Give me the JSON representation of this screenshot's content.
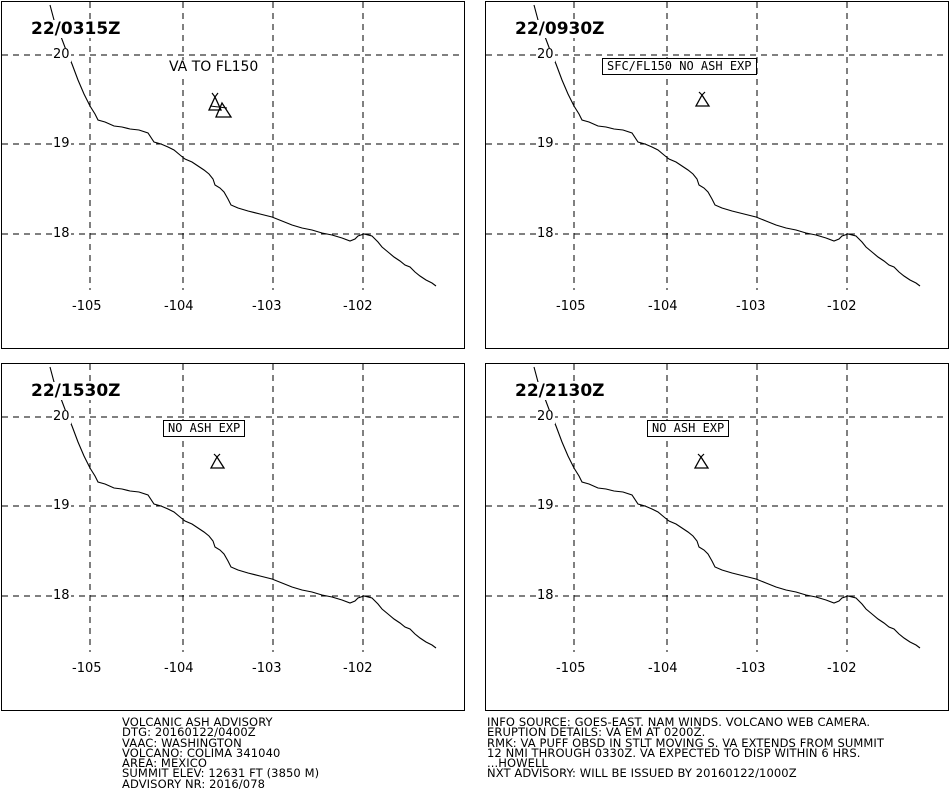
{
  "panels": [
    {
      "time": "22/0315Z",
      "label": "VA TO FL150",
      "label_style": "plain",
      "ash_polygon": true
    },
    {
      "time": "22/0930Z",
      "label": "SFC/FL150 NO ASH EXP",
      "label_style": "boxed",
      "ash_polygon": false
    },
    {
      "time": "22/1530Z",
      "label": "NO ASH EXP",
      "label_style": "boxed",
      "ash_polygon": false
    },
    {
      "time": "22/2130Z",
      "label": "NO ASH EXP",
      "label_style": "boxed",
      "ash_polygon": false
    }
  ],
  "latitude_labels": [
    "20",
    "19",
    "18"
  ],
  "longitude_labels": [
    "-105",
    "-104",
    "-103",
    "-102"
  ],
  "volcano_icon": "volcano-triangle-icon",
  "advisory_left": [
    "VOLCANIC ASH ADVISORY",
    "DTG: 20160122/0400Z",
    "VAAC: WASHINGTON",
    "VOLCANO: COLIMA 341040",
    "AREA: MEXICO",
    "SUMMIT ELEV: 12631 FT (3850 M)",
    "ADVISORY NR: 2016/078"
  ],
  "advisory_right": [
    "INFO SOURCE: GOES-EAST. NAM WINDS. VOLCANO WEB CAMERA.",
    "ERUPTION DETAILS: VA EM AT 0200Z.",
    "RMK: VA PUFF OBSD IN STLT MOVING S. VA EXTENDS FROM SUMMIT",
    "12 NMI THROUGH 0330Z. VA EXPECTED TO DISP WITHIN 6 HRS.",
    "...HOWELL",
    "NXT ADVISORY: WILL BE ISSUED BY 20160122/1000Z"
  ]
}
